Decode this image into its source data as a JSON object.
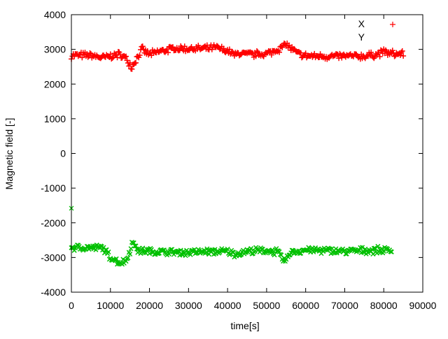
{
  "chart_data": {
    "type": "scatter",
    "title": "",
    "xlabel": "time[s]",
    "ylabel": "Magnetic field [-]",
    "xlim": [
      0,
      90000
    ],
    "ylim": [
      -4000,
      4000
    ],
    "xticks": [
      0,
      10000,
      20000,
      30000,
      40000,
      50000,
      60000,
      70000,
      80000,
      90000
    ],
    "yticks": [
      -4000,
      -3000,
      -2000,
      -1000,
      0,
      1000,
      2000,
      3000,
      4000
    ],
    "grid": false,
    "legend_position": "top-right",
    "series": [
      {
        "name": "X",
        "color": "#ff0000",
        "marker": "plus",
        "spread": 80,
        "x": [
          0,
          5000,
          8000,
          10000,
          12000,
          14000,
          15500,
          16500,
          18000,
          20000,
          23000,
          26000,
          30000,
          35000,
          37000,
          40000,
          42000,
          43000,
          45000,
          50000,
          53000,
          55000,
          57000,
          59000,
          62000,
          70000,
          75000,
          78000,
          80000,
          82000,
          85000
        ],
        "y": [
          2830,
          2820,
          2760,
          2800,
          2850,
          2750,
          2500,
          2700,
          3000,
          2850,
          2950,
          3020,
          3020,
          3020,
          3050,
          2950,
          2830,
          2900,
          2850,
          2870,
          3000,
          3150,
          2950,
          2820,
          2800,
          2800,
          2800,
          2850,
          2930,
          2870,
          2870
        ]
      },
      {
        "name": "Y",
        "color": "#00c000",
        "marker": "cross",
        "spread": 80,
        "x": [
          0,
          8000,
          10000,
          11000,
          12000,
          14000,
          15000,
          15500,
          16500,
          17000,
          20000,
          25000,
          30000,
          35000,
          40000,
          42000,
          45000,
          50000,
          53000,
          54000,
          55000,
          56000,
          60000,
          65000,
          70000,
          75000,
          82000
        ],
        "y": [
          -2720,
          -2720,
          -3000,
          -3050,
          -3150,
          -3100,
          -2800,
          -2600,
          -2650,
          -2800,
          -2820,
          -2850,
          -2850,
          -2830,
          -2830,
          -2900,
          -2820,
          -2800,
          -2850,
          -3050,
          -3100,
          -2850,
          -2780,
          -2800,
          -2820,
          -2800,
          -2780
        ],
        "outliers": [
          [
            0,
            -1580
          ]
        ]
      }
    ]
  }
}
